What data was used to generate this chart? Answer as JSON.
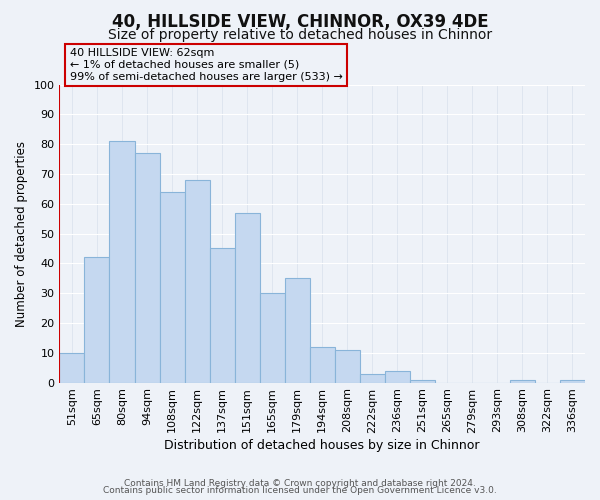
{
  "title": "40, HILLSIDE VIEW, CHINNOR, OX39 4DE",
  "subtitle": "Size of property relative to detached houses in Chinnor",
  "xlabel": "Distribution of detached houses by size in Chinnor",
  "ylabel": "Number of detached properties",
  "footer_line1": "Contains HM Land Registry data © Crown copyright and database right 2024.",
  "footer_line2": "Contains public sector information licensed under the Open Government Licence v3.0.",
  "bin_labels": [
    "51sqm",
    "65sqm",
    "80sqm",
    "94sqm",
    "108sqm",
    "122sqm",
    "137sqm",
    "151sqm",
    "165sqm",
    "179sqm",
    "194sqm",
    "208sqm",
    "222sqm",
    "236sqm",
    "251sqm",
    "265sqm",
    "279sqm",
    "293sqm",
    "308sqm",
    "322sqm",
    "336sqm"
  ],
  "bar_values": [
    10,
    42,
    81,
    77,
    64,
    68,
    45,
    57,
    30,
    35,
    12,
    11,
    3,
    4,
    1,
    0,
    0,
    0,
    1,
    0,
    1
  ],
  "bar_color": "#c5d8f0",
  "bar_edge_color": "#89b4d9",
  "highlight_bar_index": 0,
  "highlight_edge_color": "#cc0000",
  "ylim": [
    0,
    100
  ],
  "yticks": [
    0,
    10,
    20,
    30,
    40,
    50,
    60,
    70,
    80,
    90,
    100
  ],
  "annotation_text": "40 HILLSIDE VIEW: 62sqm\n← 1% of detached houses are smaller (5)\n99% of semi-detached houses are larger (533) →",
  "annotation_box_edge_color": "#cc0000",
  "vline_color": "#cc0000",
  "bg_color": "#eef2f8",
  "grid_color": "#d0d8e8",
  "title_fontsize": 12,
  "subtitle_fontsize": 10
}
